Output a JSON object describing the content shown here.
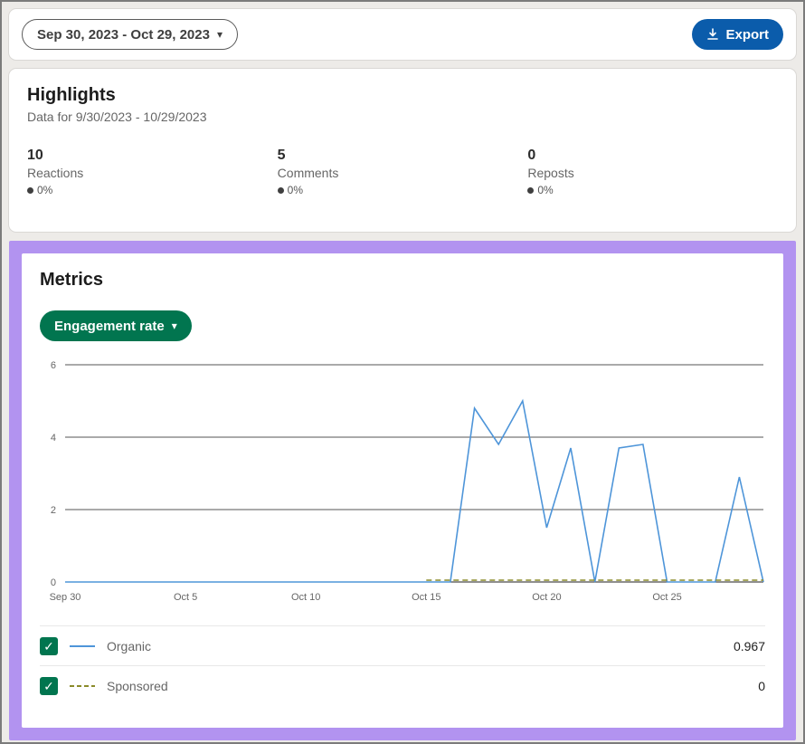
{
  "toolbar": {
    "date_range": "Sep 30, 2023 - Oct 29, 2023",
    "export_label": "Export"
  },
  "highlights": {
    "title": "Highlights",
    "subtitle": "Data for 9/30/2023 - 10/29/2023",
    "stats": [
      {
        "value": "10",
        "label": "Reactions",
        "delta": "0%"
      },
      {
        "value": "5",
        "label": "Comments",
        "delta": "0%"
      },
      {
        "value": "0",
        "label": "Reposts",
        "delta": "0%"
      }
    ]
  },
  "metrics": {
    "title": "Metrics",
    "metric_selector": "Engagement rate",
    "legend": [
      {
        "label": "Organic",
        "value": "0.967",
        "color": "#4e95d9",
        "style": "solid",
        "checked": true
      },
      {
        "label": "Sponsored",
        "value": "0",
        "color": "#8a8a29",
        "style": "dashed",
        "checked": true
      }
    ]
  },
  "chart_data": {
    "type": "line",
    "title": "Engagement rate",
    "x": [
      "Sep 30",
      "Oct 1",
      "Oct 2",
      "Oct 3",
      "Oct 4",
      "Oct 5",
      "Oct 6",
      "Oct 7",
      "Oct 8",
      "Oct 9",
      "Oct 10",
      "Oct 11",
      "Oct 12",
      "Oct 13",
      "Oct 14",
      "Oct 15",
      "Oct 16",
      "Oct 17",
      "Oct 18",
      "Oct 19",
      "Oct 20",
      "Oct 21",
      "Oct 22",
      "Oct 23",
      "Oct 24",
      "Oct 25",
      "Oct 26",
      "Oct 27",
      "Oct 28",
      "Oct 29"
    ],
    "series": [
      {
        "name": "Organic",
        "color": "#4e95d9",
        "style": "solid",
        "values": [
          0,
          0,
          0,
          0,
          0,
          0,
          0,
          0,
          0,
          0,
          0,
          0,
          0,
          0,
          0,
          0,
          0,
          4.8,
          3.8,
          5,
          1.5,
          3.7,
          0,
          3.7,
          3.8,
          0,
          0,
          0,
          2.9,
          0
        ]
      },
      {
        "name": "Sponsored",
        "color": "#8a8a29",
        "style": "dashed",
        "values": [
          null,
          null,
          null,
          null,
          null,
          null,
          null,
          null,
          null,
          null,
          null,
          null,
          null,
          null,
          null,
          0,
          0,
          0,
          0,
          0,
          0,
          0,
          0,
          0,
          0,
          0,
          0,
          0,
          0,
          0
        ]
      }
    ],
    "ylim": [
      0,
      6
    ],
    "yticks": [
      0,
      2,
      4,
      6
    ],
    "xtick_indices": [
      0,
      5,
      10,
      15,
      20,
      25
    ],
    "xtick_labels": [
      "Sep 30",
      "Oct 5",
      "Oct 10",
      "Oct 15",
      "Oct 20",
      "Oct 25"
    ],
    "grid": "horizontal",
    "legend_position": "bottom"
  },
  "colors": {
    "export_blue": "#0b5cab",
    "button_green": "#01754f",
    "organic_blue": "#4e95d9",
    "sponsored_olive": "#8a8a29",
    "highlight_purple": "#b293f0"
  }
}
